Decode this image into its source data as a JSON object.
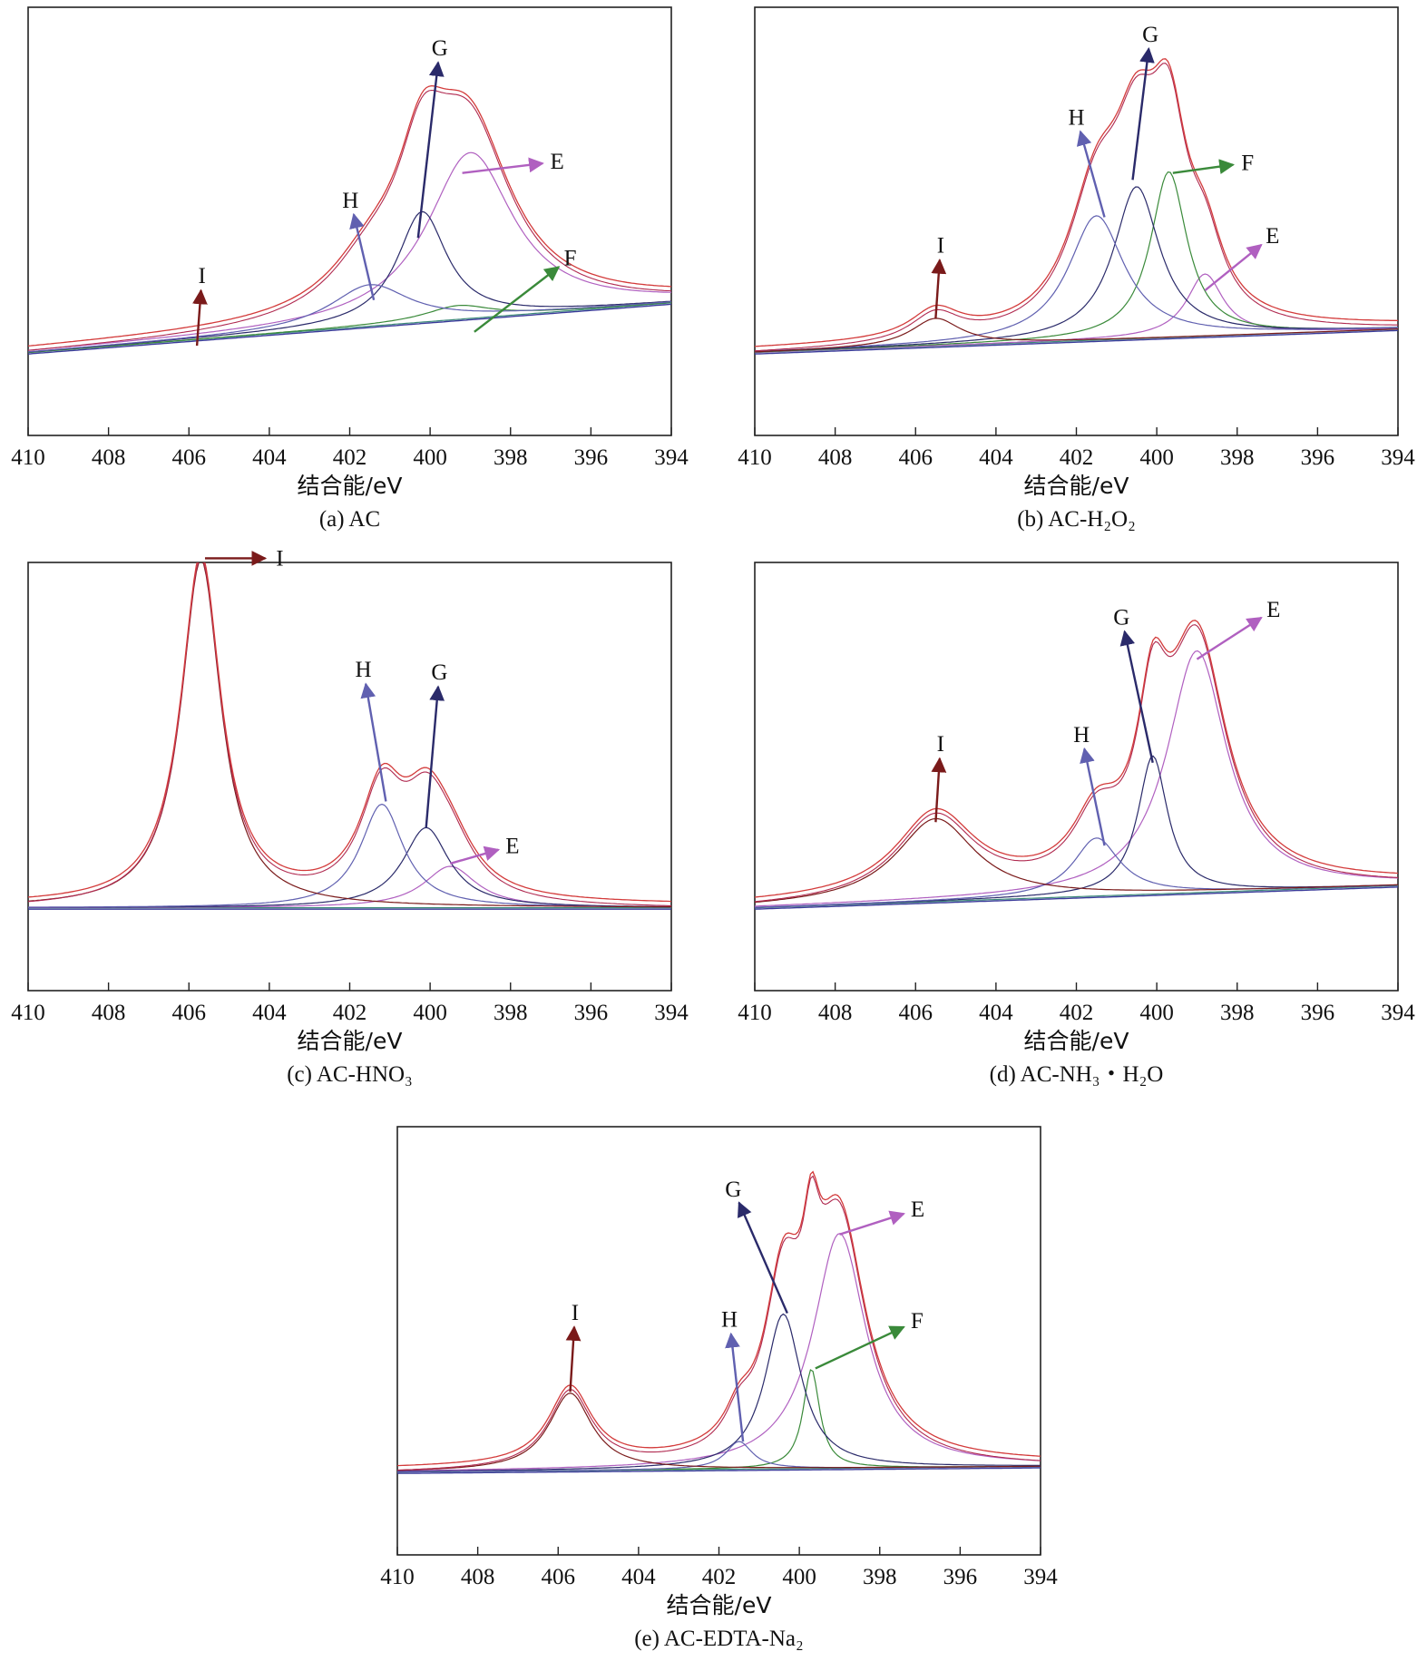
{
  "figure": {
    "colors": {
      "envelope_fit": "#d33b3b",
      "envelope_raw": "#b02a50",
      "baseline": "#3a3a9a",
      "baseline_alt": "#3c8a78",
      "E": "#b060c0",
      "F": "#3a8a3a",
      "G": "#2a2a6a",
      "H": "#6060b0",
      "I": "#7a1a1a"
    }
  },
  "chart_data": [
    {
      "id": "a",
      "type": "line",
      "caption": "(a) AC",
      "xlabel": "结合能/eV",
      "ylabel": "",
      "xlim": [
        410,
        394
      ],
      "ylim": [
        -0.6,
        2.5
      ],
      "x_ticks": [
        "410",
        "408",
        "406",
        "404",
        "402",
        "400",
        "398",
        "396",
        "394"
      ],
      "baseline": {
        "start": 0.0,
        "end": 0.36
      },
      "series": [
        {
          "name": "E",
          "center": 399.0,
          "width": 1.3,
          "height": 1.2
        },
        {
          "name": "F",
          "center": 399.3,
          "width": 1.0,
          "height": 0.1
        },
        {
          "name": "G",
          "center": 400.2,
          "width": 0.75,
          "height": 0.8
        },
        {
          "name": "H",
          "center": 401.5,
          "width": 1.2,
          "height": 0.3
        },
        {
          "name": "I",
          "center": 405.8,
          "width": 1.0,
          "height": 0.0
        }
      ],
      "peak_labels": [
        {
          "text": "G",
          "tail": [
            400.3,
            0.83
          ],
          "head": [
            399.8,
            2.1
          ]
        },
        {
          "text": "E",
          "tail": [
            399.2,
            1.3
          ],
          "head": [
            397.2,
            1.37
          ]
        },
        {
          "text": "H",
          "tail": [
            401.4,
            0.38
          ],
          "head": [
            401.9,
            1.0
          ]
        },
        {
          "text": "F",
          "tail": [
            398.9,
            0.15
          ],
          "head": [
            396.8,
            0.62
          ]
        },
        {
          "text": "I",
          "tail": [
            405.8,
            0.05
          ],
          "head": [
            405.7,
            0.45
          ]
        }
      ]
    },
    {
      "id": "b",
      "type": "line",
      "caption": "(b) AC-H₂O₂",
      "xlabel": "结合能/eV",
      "ylabel": "",
      "xlim": [
        410,
        394
      ],
      "ylim": [
        -0.6,
        2.5
      ],
      "x_ticks": [
        "410",
        "408",
        "406",
        "404",
        "402",
        "400",
        "398",
        "396",
        "394"
      ],
      "baseline": {
        "start": 0.0,
        "end": 0.17
      },
      "series": [
        {
          "name": "E",
          "center": 398.8,
          "width": 0.55,
          "height": 0.45
        },
        {
          "name": "F",
          "center": 399.7,
          "width": 0.55,
          "height": 1.2
        },
        {
          "name": "G",
          "center": 400.5,
          "width": 0.7,
          "height": 1.1
        },
        {
          "name": "H",
          "center": 401.5,
          "width": 0.85,
          "height": 0.9
        },
        {
          "name": "I",
          "center": 405.5,
          "width": 0.75,
          "height": 0.2
        }
      ],
      "peak_labels": [
        {
          "text": "G",
          "tail": [
            400.6,
            1.25
          ],
          "head": [
            400.2,
            2.2
          ]
        },
        {
          "text": "F",
          "tail": [
            399.6,
            1.3
          ],
          "head": [
            398.1,
            1.36
          ]
        },
        {
          "text": "H",
          "tail": [
            401.3,
            0.98
          ],
          "head": [
            401.9,
            1.6
          ]
        },
        {
          "text": "E",
          "tail": [
            398.8,
            0.45
          ],
          "head": [
            397.4,
            0.78
          ]
        },
        {
          "text": "I",
          "tail": [
            405.5,
            0.25
          ],
          "head": [
            405.4,
            0.67
          ]
        }
      ]
    },
    {
      "id": "c",
      "type": "line",
      "caption": "(c) AC-HNO₃",
      "xlabel": "结合能/eV",
      "ylabel": "",
      "xlim": [
        410,
        394
      ],
      "ylim": [
        -0.6,
        2.5
      ],
      "x_ticks": [
        "410",
        "408",
        "406",
        "404",
        "402",
        "400",
        "398",
        "396",
        "394"
      ],
      "baseline": {
        "start": 0.0,
        "end": 0.0
      },
      "series": [
        {
          "name": "E",
          "center": 399.5,
          "width": 0.8,
          "height": 0.3
        },
        {
          "name": "G",
          "center": 400.1,
          "width": 0.7,
          "height": 0.58
        },
        {
          "name": "H",
          "center": 401.2,
          "width": 0.65,
          "height": 0.75
        },
        {
          "name": "I",
          "center": 405.7,
          "width": 0.6,
          "height": 2.52
        }
      ],
      "peak_labels": [
        {
          "text": "I",
          "tail": [
            405.6,
            2.53
          ],
          "head": [
            404.1,
            2.53
          ]
        },
        {
          "text": "H",
          "tail": [
            401.1,
            0.77
          ],
          "head": [
            401.6,
            1.62
          ]
        },
        {
          "text": "G",
          "tail": [
            400.1,
            0.58
          ],
          "head": [
            399.8,
            1.6
          ]
        },
        {
          "text": "E",
          "tail": [
            399.5,
            0.32
          ],
          "head": [
            398.3,
            0.42
          ]
        }
      ]
    },
    {
      "id": "d",
      "type": "line",
      "caption": "(d) AC-NH₃・H₂O",
      "xlabel": "结合能/eV",
      "ylabel": "",
      "xlim": [
        410,
        394
      ],
      "ylim": [
        -0.6,
        2.5
      ],
      "x_ticks": [
        "410",
        "408",
        "406",
        "404",
        "402",
        "400",
        "398",
        "396",
        "394"
      ],
      "baseline": {
        "start": 0.0,
        "end": 0.16
      },
      "series": [
        {
          "name": "E",
          "center": 399.0,
          "width": 0.9,
          "height": 1.75
        },
        {
          "name": "G",
          "center": 400.1,
          "width": 0.45,
          "height": 1.0
        },
        {
          "name": "H",
          "center": 401.5,
          "width": 0.7,
          "height": 0.42
        },
        {
          "name": "I",
          "center": 405.5,
          "width": 1.2,
          "height": 0.6
        }
      ],
      "peak_labels": [
        {
          "text": "E",
          "tail": [
            399.0,
            1.8
          ],
          "head": [
            397.4,
            2.1
          ]
        },
        {
          "text": "G",
          "tail": [
            400.1,
            1.05
          ],
          "head": [
            400.8,
            2.0
          ]
        },
        {
          "text": "H",
          "tail": [
            401.3,
            0.45
          ],
          "head": [
            401.8,
            1.15
          ]
        },
        {
          "text": "I",
          "tail": [
            405.5,
            0.62
          ],
          "head": [
            405.4,
            1.08
          ]
        }
      ]
    },
    {
      "id": "e",
      "type": "line",
      "caption": "(e) AC-EDTA-Na₂",
      "xlabel": "结合能/eV",
      "ylabel": "",
      "xlim": [
        410,
        394
      ],
      "ylim": [
        -0.6,
        2.5
      ],
      "x_ticks": [
        "410",
        "408",
        "406",
        "404",
        "402",
        "400",
        "398",
        "396",
        "394"
      ],
      "baseline": {
        "start": 0.0,
        "end": 0.04
      },
      "series": [
        {
          "name": "E",
          "center": 399.0,
          "width": 0.8,
          "height": 1.7
        },
        {
          "name": "F",
          "center": 399.7,
          "width": 0.25,
          "height": 0.72
        },
        {
          "name": "G",
          "center": 400.4,
          "width": 0.55,
          "height": 1.12
        },
        {
          "name": "H",
          "center": 401.5,
          "width": 0.4,
          "height": 0.2
        },
        {
          "name": "I",
          "center": 405.7,
          "width": 0.65,
          "height": 0.56
        }
      ],
      "peak_labels": [
        {
          "text": "G",
          "tail": [
            400.3,
            1.15
          ],
          "head": [
            401.5,
            1.95
          ]
        },
        {
          "text": "E",
          "tail": [
            399.0,
            1.72
          ],
          "head": [
            397.4,
            1.87
          ]
        },
        {
          "text": "F",
          "tail": [
            399.6,
            0.75
          ],
          "head": [
            397.4,
            1.05
          ]
        },
        {
          "text": "H",
          "tail": [
            401.4,
            0.22
          ],
          "head": [
            401.7,
            1.0
          ]
        },
        {
          "text": "I",
          "tail": [
            405.7,
            0.58
          ],
          "head": [
            405.6,
            1.05
          ]
        }
      ]
    }
  ]
}
